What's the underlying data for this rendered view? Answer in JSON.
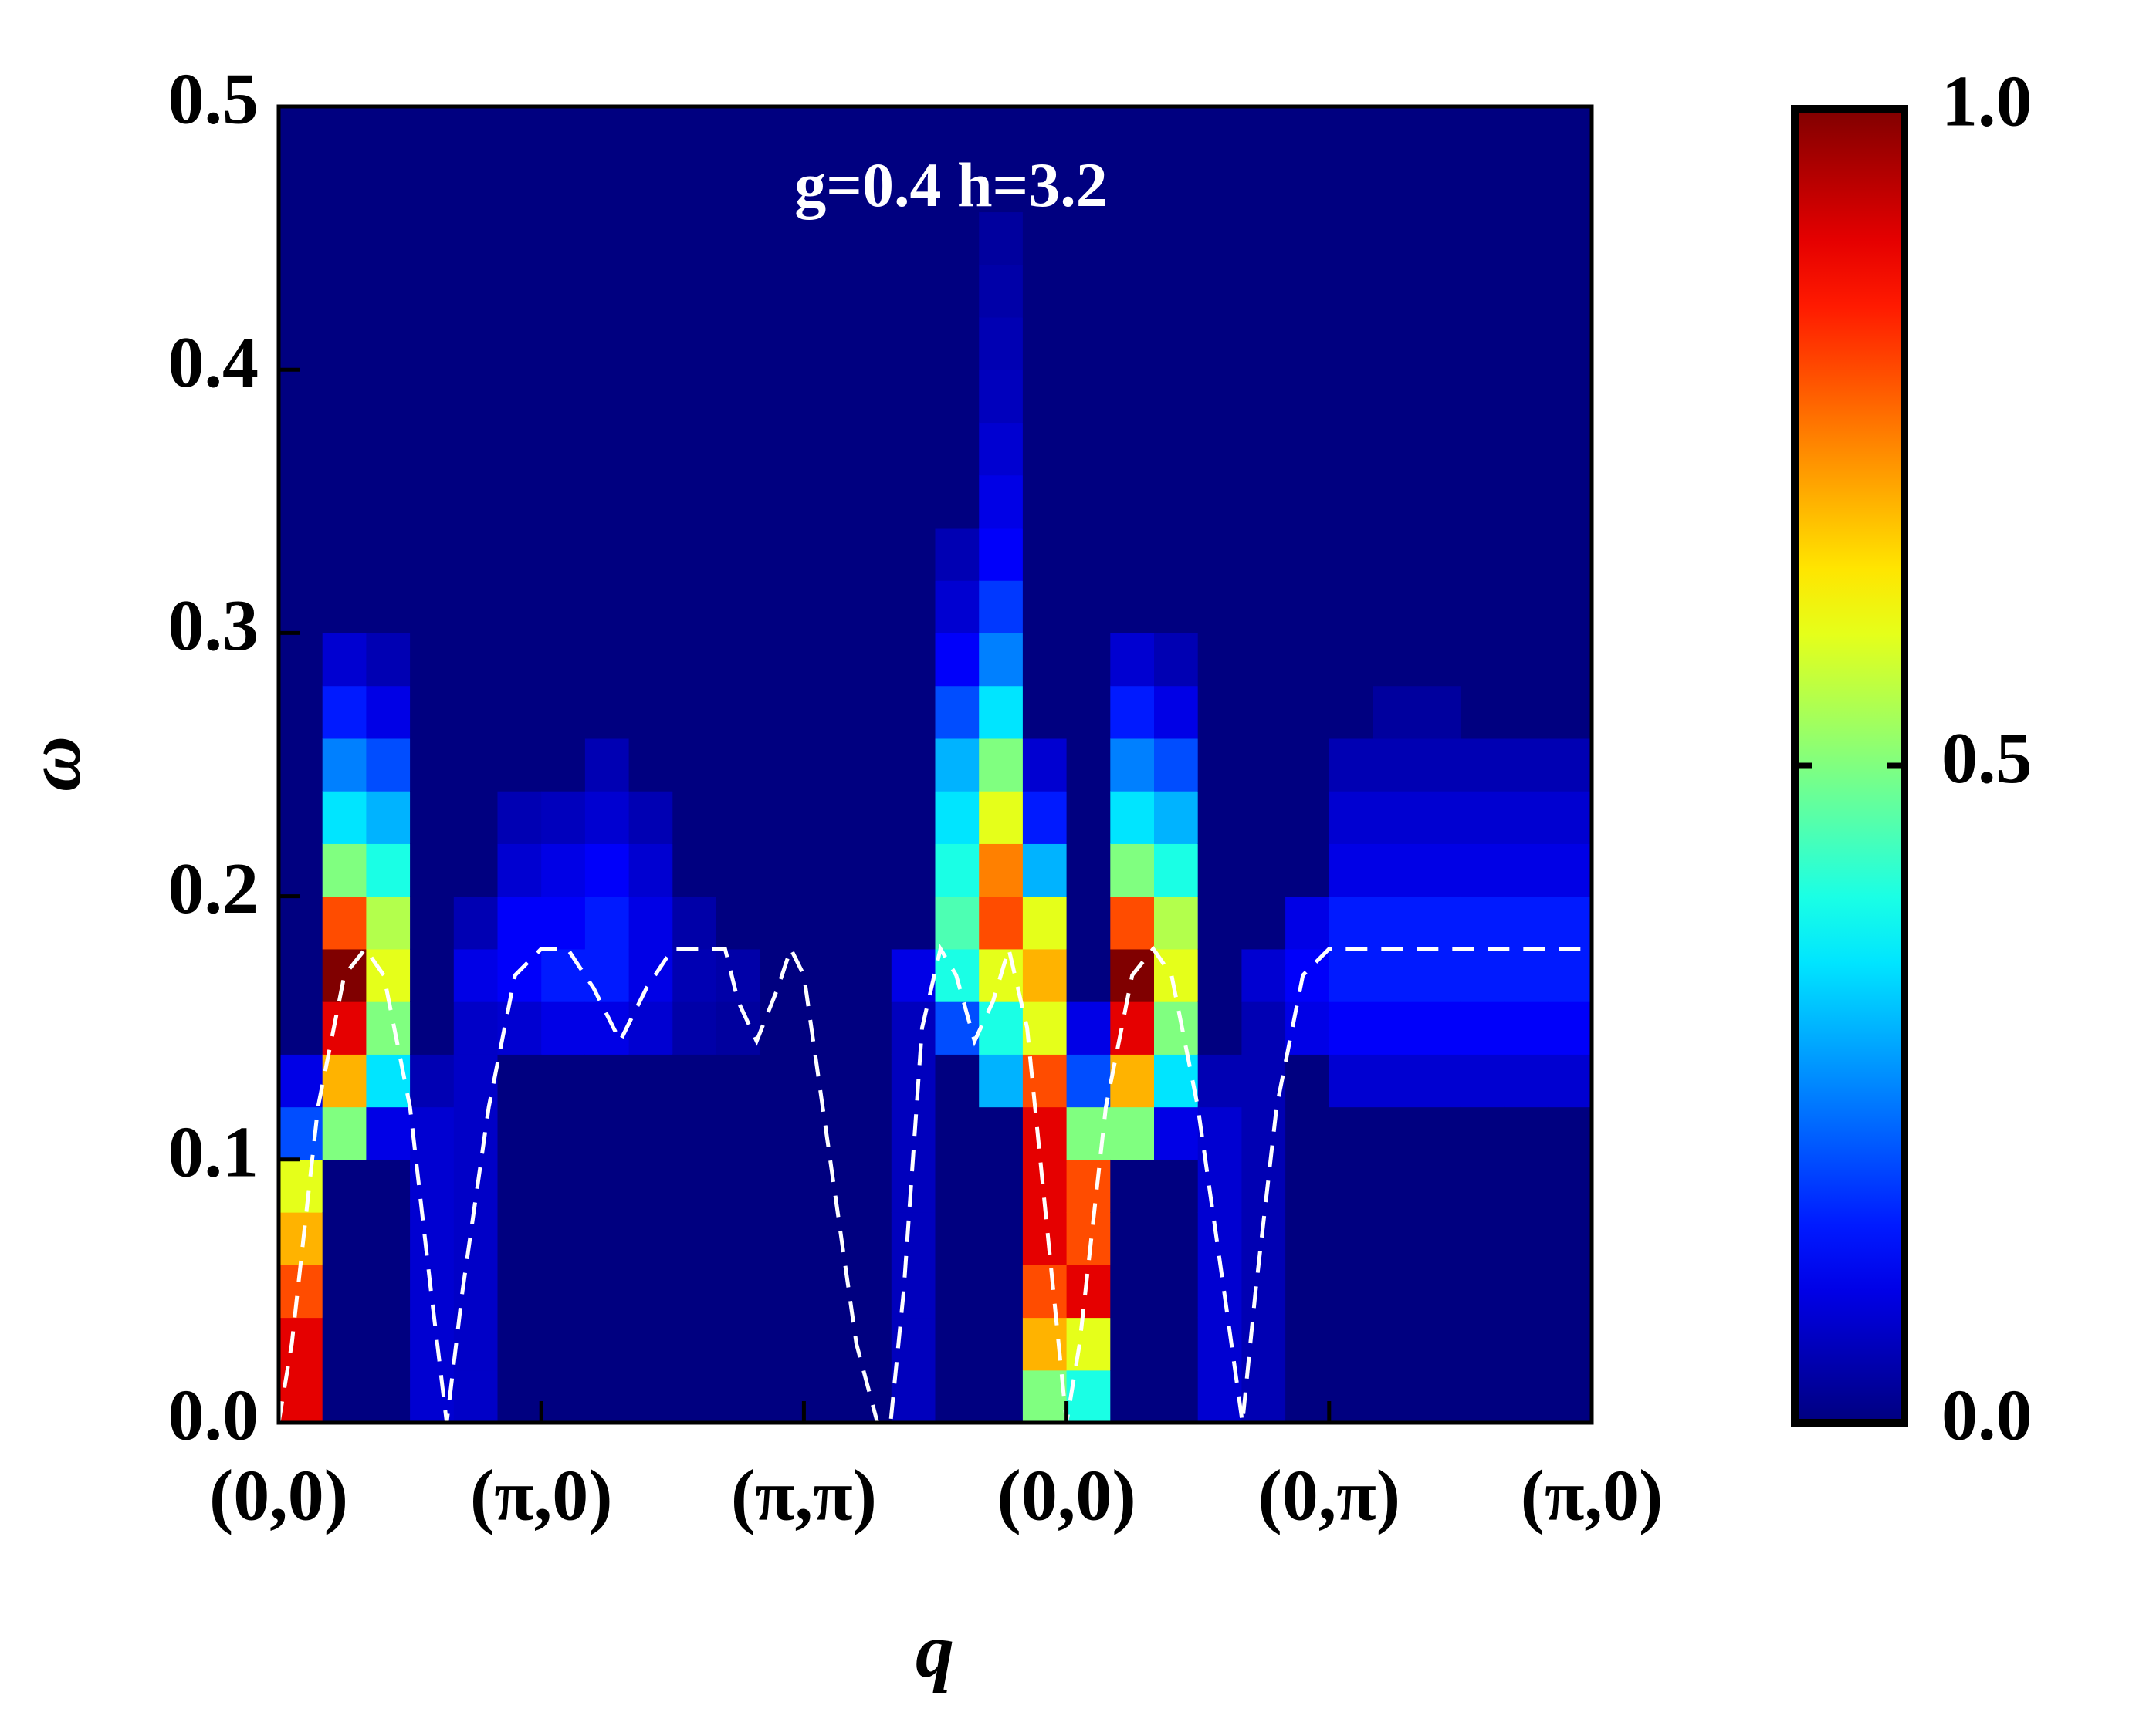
{
  "chart_data": {
    "type": "heatmap",
    "annotation": "g=0.4 h=3.2",
    "xlabel": "q",
    "ylabel": "ω",
    "xlim": [
      0,
      5
    ],
    "ylim": [
      0,
      0.5
    ],
    "xticks": [
      {
        "value": 0,
        "label": "(0,0)"
      },
      {
        "value": 1,
        "label": "(π,0)"
      },
      {
        "value": 2,
        "label": "(π,π)"
      },
      {
        "value": 3,
        "label": "(0,0)"
      },
      {
        "value": 4,
        "label": "(0,π)"
      },
      {
        "value": 5,
        "label": "(π,0)"
      }
    ],
    "yticks": [
      {
        "value": 0,
        "label": "0.0"
      },
      0.1,
      0.2,
      0.3,
      0.4,
      0.5
    ],
    "colormap": "jet",
    "zlim": [
      0,
      1
    ],
    "zticks": [
      {
        "value": 0,
        "label": "0.0"
      },
      0.5,
      {
        "value": 1,
        "label": "1.0"
      }
    ],
    "z": [
      [
        0.9,
        0.9,
        0.8,
        0.7,
        0.6,
        0.2,
        0.1,
        0,
        0,
        0,
        0,
        0,
        0,
        0,
        0,
        0,
        0,
        0,
        0,
        0,
        0,
        0,
        0,
        0,
        0
      ],
      [
        0,
        0,
        0,
        0,
        0,
        0.5,
        0.7,
        0.9,
        1.0,
        0.8,
        0.5,
        0.35,
        0.25,
        0.15,
        0.08,
        0,
        0,
        0,
        0,
        0,
        0,
        0,
        0,
        0,
        0
      ],
      [
        0,
        0,
        0,
        0,
        0,
        0.1,
        0.35,
        0.5,
        0.6,
        0.55,
        0.4,
        0.3,
        0.2,
        0.1,
        0.05,
        0,
        0,
        0,
        0,
        0,
        0,
        0,
        0,
        0,
        0
      ],
      [
        0.08,
        0.08,
        0.08,
        0.08,
        0.08,
        0.08,
        0.05,
        0,
        0,
        0,
        0,
        0,
        0,
        0,
        0,
        0,
        0,
        0,
        0,
        0,
        0,
        0,
        0,
        0,
        0
      ],
      [
        0.07,
        0.07,
        0.07,
        0.07,
        0.07,
        0.07,
        0.07,
        0.07,
        0.1,
        0.05,
        0,
        0,
        0,
        0,
        0,
        0,
        0,
        0,
        0,
        0,
        0,
        0,
        0,
        0,
        0
      ],
      [
        0,
        0,
        0,
        0,
        0,
        0,
        0,
        0.08,
        0.12,
        0.12,
        0.08,
        0.05,
        0,
        0,
        0,
        0,
        0,
        0,
        0,
        0,
        0,
        0,
        0,
        0,
        0
      ],
      [
        0,
        0,
        0,
        0,
        0,
        0,
        0,
        0.1,
        0.15,
        0.12,
        0.1,
        0.06,
        0,
        0,
        0,
        0,
        0,
        0,
        0,
        0,
        0,
        0,
        0,
        0,
        0
      ],
      [
        0,
        0,
        0,
        0,
        0,
        0,
        0,
        0.1,
        0.15,
        0.15,
        0.12,
        0.08,
        0.05,
        0,
        0,
        0,
        0,
        0,
        0,
        0,
        0,
        0,
        0,
        0,
        0
      ],
      [
        0,
        0,
        0,
        0,
        0,
        0,
        0,
        0.08,
        0.1,
        0.1,
        0.08,
        0.05,
        0,
        0,
        0,
        0,
        0,
        0,
        0,
        0,
        0,
        0,
        0,
        0,
        0
      ],
      [
        0,
        0,
        0,
        0,
        0,
        0,
        0,
        0.04,
        0.05,
        0.04,
        0,
        0,
        0,
        0,
        0,
        0,
        0,
        0,
        0,
        0,
        0,
        0,
        0,
        0,
        0
      ],
      [
        0,
        0,
        0,
        0,
        0,
        0,
        0,
        0.03,
        0.04,
        0,
        0,
        0,
        0,
        0,
        0,
        0,
        0,
        0,
        0,
        0,
        0,
        0,
        0,
        0,
        0
      ],
      [
        0,
        0,
        0,
        0,
        0,
        0,
        0,
        0,
        0,
        0,
        0,
        0,
        0,
        0,
        0,
        0,
        0,
        0,
        0,
        0,
        0,
        0,
        0,
        0,
        0
      ],
      [
        0,
        0,
        0,
        0,
        0,
        0,
        0,
        0,
        0,
        0,
        0,
        0,
        0,
        0,
        0,
        0,
        0,
        0,
        0,
        0,
        0,
        0,
        0,
        0,
        0
      ],
      [
        0,
        0,
        0,
        0,
        0,
        0,
        0,
        0,
        0,
        0,
        0,
        0,
        0,
        0,
        0,
        0,
        0,
        0,
        0,
        0,
        0,
        0,
        0,
        0,
        0
      ],
      [
        0.06,
        0.06,
        0.06,
        0.06,
        0.06,
        0.06,
        0.06,
        0.06,
        0.1,
        0,
        0,
        0,
        0,
        0,
        0,
        0,
        0,
        0,
        0,
        0,
        0,
        0,
        0,
        0,
        0
      ],
      [
        0,
        0,
        0,
        0,
        0,
        0,
        0,
        0.2,
        0.4,
        0.45,
        0.4,
        0.35,
        0.3,
        0.2,
        0.12,
        0.08,
        0.05,
        0,
        0,
        0,
        0,
        0,
        0,
        0,
        0
      ],
      [
        0,
        0,
        0,
        0,
        0,
        0,
        0.3,
        0.4,
        0.6,
        0.8,
        0.75,
        0.6,
        0.5,
        0.35,
        0.25,
        0.18,
        0.12,
        0.1,
        0.08,
        0.06,
        0.05,
        0.04,
        0.03,
        0,
        0
      ],
      [
        0.5,
        0.7,
        0.8,
        0.9,
        0.9,
        0.9,
        0.8,
        0.6,
        0.7,
        0.6,
        0.3,
        0.15,
        0.08,
        0,
        0,
        0,
        0,
        0,
        0,
        0,
        0,
        0,
        0,
        0,
        0
      ],
      [
        0.4,
        0.6,
        0.9,
        0.8,
        0.8,
        0.5,
        0.2,
        0.1,
        0,
        0,
        0,
        0,
        0,
        0,
        0,
        0,
        0,
        0,
        0,
        0,
        0,
        0,
        0,
        0,
        0
      ],
      [
        0,
        0,
        0,
        0,
        0,
        0.5,
        0.7,
        0.9,
        1.0,
        0.8,
        0.5,
        0.35,
        0.25,
        0.15,
        0.08,
        0,
        0,
        0,
        0,
        0,
        0,
        0,
        0,
        0,
        0
      ],
      [
        0,
        0,
        0,
        0,
        0,
        0.1,
        0.35,
        0.5,
        0.6,
        0.55,
        0.4,
        0.3,
        0.2,
        0.1,
        0.05,
        0,
        0,
        0,
        0,
        0,
        0,
        0,
        0,
        0,
        0
      ],
      [
        0.08,
        0.08,
        0.08,
        0.08,
        0.08,
        0.08,
        0.05,
        0,
        0,
        0,
        0,
        0,
        0,
        0,
        0,
        0,
        0,
        0,
        0,
        0,
        0,
        0,
        0,
        0,
        0
      ],
      [
        0.05,
        0.05,
        0.05,
        0.05,
        0.05,
        0.05,
        0.05,
        0.05,
        0.08,
        0,
        0,
        0,
        0,
        0,
        0,
        0,
        0,
        0,
        0,
        0,
        0,
        0,
        0,
        0,
        0
      ],
      [
        0,
        0,
        0,
        0,
        0,
        0,
        0,
        0.1,
        0.12,
        0.1,
        0,
        0,
        0,
        0,
        0,
        0,
        0,
        0,
        0,
        0,
        0,
        0,
        0,
        0,
        0
      ],
      [
        0,
        0,
        0,
        0,
        0,
        0,
        0.08,
        0.12,
        0.15,
        0.15,
        0.1,
        0.08,
        0.05,
        0,
        0,
        0,
        0,
        0,
        0,
        0,
        0,
        0,
        0,
        0,
        0
      ],
      [
        0,
        0,
        0,
        0,
        0,
        0,
        0.08,
        0.12,
        0.15,
        0.15,
        0.1,
        0.08,
        0.05,
        0.03,
        0,
        0,
        0,
        0,
        0,
        0,
        0,
        0,
        0,
        0,
        0
      ],
      [
        0,
        0,
        0,
        0,
        0,
        0,
        0.08,
        0.12,
        0.15,
        0.15,
        0.1,
        0.08,
        0.05,
        0.03,
        0,
        0,
        0,
        0,
        0,
        0,
        0,
        0,
        0,
        0,
        0
      ],
      [
        0,
        0,
        0,
        0,
        0,
        0,
        0.08,
        0.12,
        0.15,
        0.15,
        0.1,
        0.08,
        0.05,
        0,
        0,
        0,
        0,
        0,
        0,
        0,
        0,
        0,
        0,
        0,
        0
      ],
      [
        0,
        0,
        0,
        0,
        0,
        0,
        0.08,
        0.12,
        0.15,
        0.15,
        0.1,
        0.08,
        0.05,
        0,
        0,
        0,
        0,
        0,
        0,
        0,
        0,
        0,
        0,
        0,
        0
      ],
      [
        0,
        0,
        0,
        0,
        0,
        0,
        0.08,
        0.12,
        0.15,
        0.15,
        0.1,
        0.08,
        0.05,
        0,
        0,
        0,
        0,
        0,
        0,
        0,
        0,
        0,
        0,
        0,
        0
      ]
    ],
    "line": {
      "color": "#ffffff",
      "x": [
        0,
        0.05,
        0.15,
        0.25,
        0.33,
        0.4,
        0.5,
        0.58,
        0.64,
        0.7,
        0.8,
        0.9,
        1.0,
        1.1,
        1.2,
        1.3,
        1.4,
        1.5,
        1.6,
        1.7,
        1.75,
        1.82,
        1.9,
        1.95,
        2.0,
        2.1,
        2.2,
        2.28,
        2.33,
        2.38,
        2.45,
        2.52,
        2.58,
        2.65,
        2.72,
        2.78,
        2.85,
        2.92,
        3.0,
        3.05,
        3.15,
        3.25,
        3.33,
        3.4,
        3.5,
        3.6,
        3.67,
        3.72,
        3.8,
        3.9,
        4.0,
        5.0
      ],
      "y": [
        0,
        0.03,
        0.12,
        0.17,
        0.18,
        0.17,
        0.12,
        0.05,
        0,
        0.05,
        0.12,
        0.17,
        0.18,
        0.18,
        0.165,
        0.145,
        0.165,
        0.18,
        0.18,
        0.18,
        0.16,
        0.145,
        0.165,
        0.18,
        0.17,
        0.1,
        0.03,
        0,
        0,
        0.05,
        0.15,
        0.18,
        0.17,
        0.145,
        0.16,
        0.18,
        0.15,
        0.08,
        0,
        0.03,
        0.12,
        0.17,
        0.18,
        0.17,
        0.12,
        0.05,
        0,
        0.05,
        0.12,
        0.17,
        0.18,
        0.18
      ]
    }
  }
}
